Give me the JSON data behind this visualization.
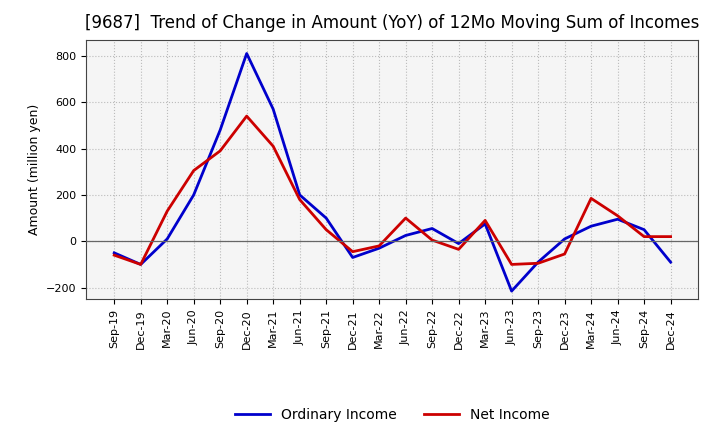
{
  "title": "[9687]  Trend of Change in Amount (YoY) of 12Mo Moving Sum of Incomes",
  "ylabel": "Amount (million yen)",
  "x_labels": [
    "Sep-19",
    "Dec-19",
    "Mar-20",
    "Jun-20",
    "Sep-20",
    "Dec-20",
    "Mar-21",
    "Jun-21",
    "Sep-21",
    "Dec-21",
    "Mar-22",
    "Jun-22",
    "Sep-22",
    "Dec-22",
    "Mar-23",
    "Jun-23",
    "Sep-23",
    "Dec-23",
    "Mar-24",
    "Jun-24",
    "Sep-24",
    "Dec-24"
  ],
  "ordinary_income": [
    -50,
    -100,
    10,
    200,
    480,
    810,
    570,
    200,
    100,
    -70,
    -30,
    25,
    55,
    -10,
    75,
    -215,
    -90,
    10,
    65,
    95,
    50,
    -90
  ],
  "net_income": [
    -60,
    -100,
    130,
    305,
    390,
    540,
    410,
    180,
    50,
    -45,
    -20,
    100,
    5,
    -35,
    90,
    -100,
    -95,
    -55,
    185,
    110,
    20,
    20
  ],
  "ordinary_color": "#0000cc",
  "net_color": "#cc0000",
  "background_color": "#ffffff",
  "plot_bg_color": "#f5f5f5",
  "grid_color": "#bbbbbb",
  "ylim": [
    -250,
    870
  ],
  "yticks": [
    -200,
    0,
    200,
    400,
    600,
    800
  ],
  "line_width": 2.0,
  "title_fontsize": 12,
  "axis_fontsize": 9,
  "tick_fontsize": 8,
  "legend_fontsize": 10
}
